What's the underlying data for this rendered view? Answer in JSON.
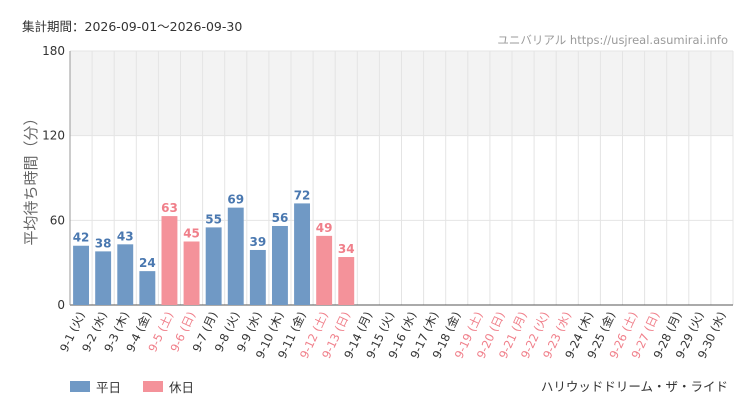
{
  "header": {
    "period": "集計期間：2026-09-01〜2026-09-30",
    "source": "ユニバリアル https://usjreal.asumirai.info"
  },
  "footer": {
    "attraction": "ハリウッドドリーム・ザ・ライド"
  },
  "colors": {
    "weekday": "#7099c5",
    "holiday": "#f4929a",
    "weekday_label": "#4a78b0",
    "holiday_label": "#f07f8a",
    "band": "#f3f3f3",
    "grid": "#e4e4e4"
  },
  "legend": [
    {
      "label": "平日",
      "kind": "weekday"
    },
    {
      "label": "休日",
      "kind": "holiday"
    }
  ],
  "chart_data": {
    "type": "bar",
    "ylabel": "平均待ち時間（分）",
    "ylim": [
      0,
      180
    ],
    "yticks": [
      0,
      60,
      120,
      180
    ],
    "highlight_band": [
      120,
      180
    ],
    "categories": [
      "9-1 (火)",
      "9-2 (水)",
      "9-3 (木)",
      "9-4 (金)",
      "9-5 (土)",
      "9-6 (日)",
      "9-7 (月)",
      "9-8 (火)",
      "9-9 (水)",
      "9-10 (木)",
      "9-11 (金)",
      "9-12 (土)",
      "9-13 (日)",
      "9-14 (月)",
      "9-15 (火)",
      "9-16 (水)",
      "9-17 (木)",
      "9-18 (金)",
      "9-19 (土)",
      "9-20 (日)",
      "9-21 (月)",
      "9-22 (火)",
      "9-23 (水)",
      "9-24 (木)",
      "9-25 (金)",
      "9-26 (土)",
      "9-27 (日)",
      "9-28 (月)",
      "9-29 (火)",
      "9-30 (水)"
    ],
    "values": [
      42,
      38,
      43,
      24,
      63,
      45,
      55,
      69,
      39,
      56,
      72,
      49,
      34,
      null,
      null,
      null,
      null,
      null,
      null,
      null,
      null,
      null,
      null,
      null,
      null,
      null,
      null,
      null,
      null,
      null
    ],
    "day_type": [
      "weekday",
      "weekday",
      "weekday",
      "weekday",
      "holiday",
      "holiday",
      "weekday",
      "weekday",
      "weekday",
      "weekday",
      "weekday",
      "holiday",
      "holiday",
      "weekday",
      "weekday",
      "weekday",
      "weekday",
      "weekday",
      "holiday",
      "holiday",
      "holiday",
      "holiday",
      "holiday",
      "weekday",
      "weekday",
      "holiday",
      "holiday",
      "weekday",
      "weekday",
      "weekday"
    ],
    "series": [
      {
        "name": "平日",
        "kind": "weekday"
      },
      {
        "name": "休日",
        "kind": "holiday"
      }
    ],
    "grid": true,
    "legend_position": "bottom-left"
  }
}
